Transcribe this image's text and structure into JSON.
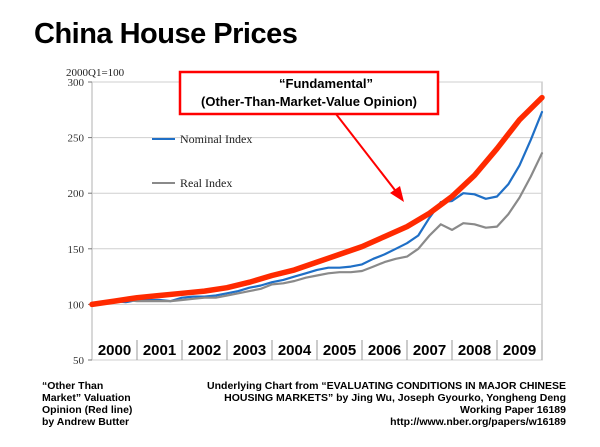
{
  "slide_title": "China House Prices",
  "chart_data": {
    "type": "line",
    "unit_label": "2000Q1=100",
    "ylim": [
      50,
      300
    ],
    "yticks": [
      50,
      100,
      150,
      200,
      250,
      300
    ],
    "xlim": [
      2000,
      2010
    ],
    "year_labels": [
      "2000",
      "2001",
      "2002",
      "2003",
      "2004",
      "2005",
      "2006",
      "2007",
      "2008",
      "2009"
    ],
    "annotation": {
      "line1": "“Fundamental”",
      "line2": "(Other-Than-Market-Value Opinion)",
      "color": "#ff0000"
    },
    "series": [
      {
        "name": "Nominal Index",
        "color": "#1f6fc6",
        "x": [
          2000.0,
          2000.25,
          2000.5,
          2000.75,
          2001.0,
          2001.25,
          2001.5,
          2001.75,
          2002.0,
          2002.25,
          2002.5,
          2002.75,
          2003.0,
          2003.25,
          2003.5,
          2003.75,
          2004.0,
          2004.25,
          2004.5,
          2004.75,
          2005.0,
          2005.25,
          2005.5,
          2005.75,
          2006.0,
          2006.25,
          2006.5,
          2006.75,
          2007.0,
          2007.25,
          2007.5,
          2007.75,
          2008.0,
          2008.25,
          2008.5,
          2008.75,
          2009.0,
          2009.25,
          2009.5,
          2009.75,
          2010.0
        ],
        "y": [
          100,
          102,
          103,
          102,
          104,
          104,
          104,
          103,
          106,
          107,
          107,
          108,
          110,
          112,
          115,
          117,
          120,
          122,
          125,
          128,
          131,
          133,
          133,
          134,
          136,
          141,
          145,
          150,
          155,
          162,
          178,
          192,
          193,
          200,
          199,
          195,
          197,
          208,
          225,
          248,
          273
        ]
      },
      {
        "name": "Real Index",
        "color": "#8a8a8a",
        "x": [
          2000.0,
          2000.25,
          2000.5,
          2000.75,
          2001.0,
          2001.25,
          2001.5,
          2001.75,
          2002.0,
          2002.25,
          2002.5,
          2002.75,
          2003.0,
          2003.25,
          2003.5,
          2003.75,
          2004.0,
          2004.25,
          2004.5,
          2004.75,
          2005.0,
          2005.25,
          2005.5,
          2005.75,
          2006.0,
          2006.25,
          2006.5,
          2006.75,
          2007.0,
          2007.25,
          2007.5,
          2007.75,
          2008.0,
          2008.25,
          2008.5,
          2008.75,
          2009.0,
          2009.25,
          2009.5,
          2009.75,
          2010.0
        ],
        "y": [
          100,
          101,
          104,
          104,
          103,
          103,
          103,
          103,
          104,
          105,
          106,
          106,
          108,
          110,
          112,
          114,
          118,
          119,
          121,
          124,
          126,
          128,
          129,
          129,
          130,
          134,
          138,
          141,
          143,
          150,
          162,
          172,
          167,
          173,
          172,
          169,
          170,
          181,
          196,
          215,
          236
        ]
      },
      {
        "name": "Fundamental",
        "color": "#ff2a00",
        "x": [
          2000.0,
          2000.5,
          2001.0,
          2001.5,
          2002.0,
          2002.5,
          2003.0,
          2003.5,
          2004.0,
          2004.5,
          2005.0,
          2005.5,
          2006.0,
          2006.5,
          2007.0,
          2007.5,
          2008.0,
          2008.5,
          2009.0,
          2009.5,
          2010.0
        ],
        "y": [
          100,
          103,
          106,
          108,
          110,
          112,
          115,
          120,
          126,
          131,
          138,
          145,
          152,
          161,
          170,
          182,
          197,
          216,
          240,
          266,
          286
        ]
      }
    ]
  },
  "note_left": {
    "line1": "“Other Than",
    "line2": "Market” Valuation",
    "line3": "Opinion (Red line)",
    "line4": "by Andrew Butter"
  },
  "note_right": {
    "line1": "Underlying Chart from “EVALUATING CONDITIONS IN MAJOR CHINESE",
    "line2": "HOUSING MARKETS” by Jing Wu, Joseph Gyourko, Yongheng Deng",
    "line3": "Working Paper 16189",
    "line4": "http://www.nber.org/papers/w16189"
  }
}
